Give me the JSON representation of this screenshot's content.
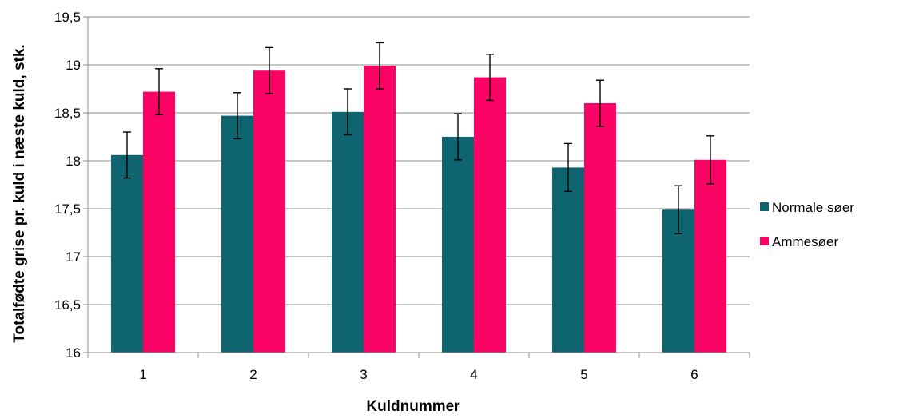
{
  "chart_data": {
    "type": "bar",
    "title": "",
    "xlabel": "Kuldnummer",
    "ylabel": "Totalfødte grise pr. kuld i næste kuld, stk.",
    "categories": [
      "1",
      "2",
      "3",
      "4",
      "5",
      "6"
    ],
    "ylim": [
      16,
      19.5
    ],
    "yticks": [
      16,
      16.5,
      17,
      17.5,
      18,
      18.5,
      19,
      19.5
    ],
    "ytick_labels": [
      "16",
      "16,5",
      "17",
      "17,5",
      "18",
      "18,5",
      "19",
      "19,5"
    ],
    "grid": true,
    "legend_position": "right",
    "series": [
      {
        "name": "Normale søer",
        "color": "#0e6570",
        "values": [
          18.06,
          18.47,
          18.51,
          18.25,
          17.93,
          17.49
        ],
        "error": [
          0.24,
          0.24,
          0.24,
          0.24,
          0.25,
          0.25
        ]
      },
      {
        "name": "Ammesøer",
        "color": "#fb0365",
        "values": [
          18.72,
          18.94,
          18.99,
          18.87,
          18.6,
          18.01
        ],
        "error": [
          0.24,
          0.24,
          0.24,
          0.24,
          0.24,
          0.25
        ]
      }
    ]
  }
}
